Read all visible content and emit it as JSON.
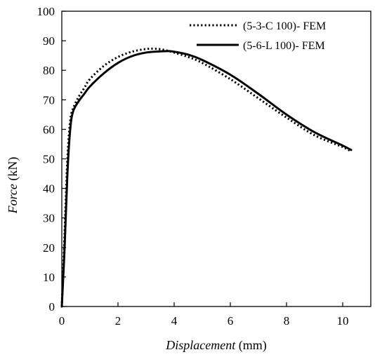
{
  "chart_data": {
    "type": "line",
    "xlabel": {
      "name": "Displacement",
      "unit": "(mm)"
    },
    "ylabel": {
      "name": "Force",
      "unit": "(kN)"
    },
    "xlim": [
      0,
      11
    ],
    "ylim": [
      0,
      100
    ],
    "xticks": [
      0,
      2,
      4,
      6,
      8,
      10
    ],
    "yticks": [
      0,
      10,
      20,
      30,
      40,
      50,
      60,
      70,
      80,
      90,
      100
    ],
    "xtick_labels": [
      "0",
      "2",
      "4",
      "6",
      "8",
      "10"
    ],
    "ytick_labels": [
      "0",
      "10",
      "20",
      "30",
      "40",
      "50",
      "60",
      "70",
      "80",
      "90",
      "100"
    ],
    "grid": false,
    "legend_position": "top-right",
    "series": [
      {
        "name": "(5-3-C 100)- FEM",
        "style": "dotted",
        "color": "#000000",
        "x": [
          0,
          0.1,
          0.2,
          0.3,
          0.4,
          0.6,
          0.8,
          1.0,
          1.5,
          2.0,
          2.5,
          3.0,
          3.3,
          3.6,
          4.0,
          4.5,
          5.0,
          6.0,
          7.0,
          8.0,
          9.0,
          10.0,
          10.3
        ],
        "y": [
          0,
          25,
          50,
          63,
          67,
          71,
          74,
          77,
          81.5,
          84.5,
          86.3,
          87.2,
          87.3,
          87,
          86,
          84.5,
          82.5,
          77,
          70.5,
          64,
          58,
          54,
          52.5
        ]
      },
      {
        "name": "(5-6-L 100)- FEM",
        "style": "solid",
        "color": "#000000",
        "x": [
          0,
          0.1,
          0.2,
          0.3,
          0.4,
          0.6,
          0.8,
          1.0,
          1.5,
          2.0,
          2.5,
          3.0,
          3.5,
          3.8,
          4.0,
          4.5,
          5.0,
          6.0,
          7.0,
          8.0,
          9.0,
          10.0,
          10.3
        ],
        "y": [
          0,
          20,
          45,
          60,
          66,
          69.5,
          72,
          74.5,
          79,
          82.5,
          84.8,
          86,
          86.4,
          86.5,
          86.3,
          85.3,
          83.5,
          78.5,
          72,
          65,
          59,
          54.5,
          53
        ]
      }
    ]
  }
}
